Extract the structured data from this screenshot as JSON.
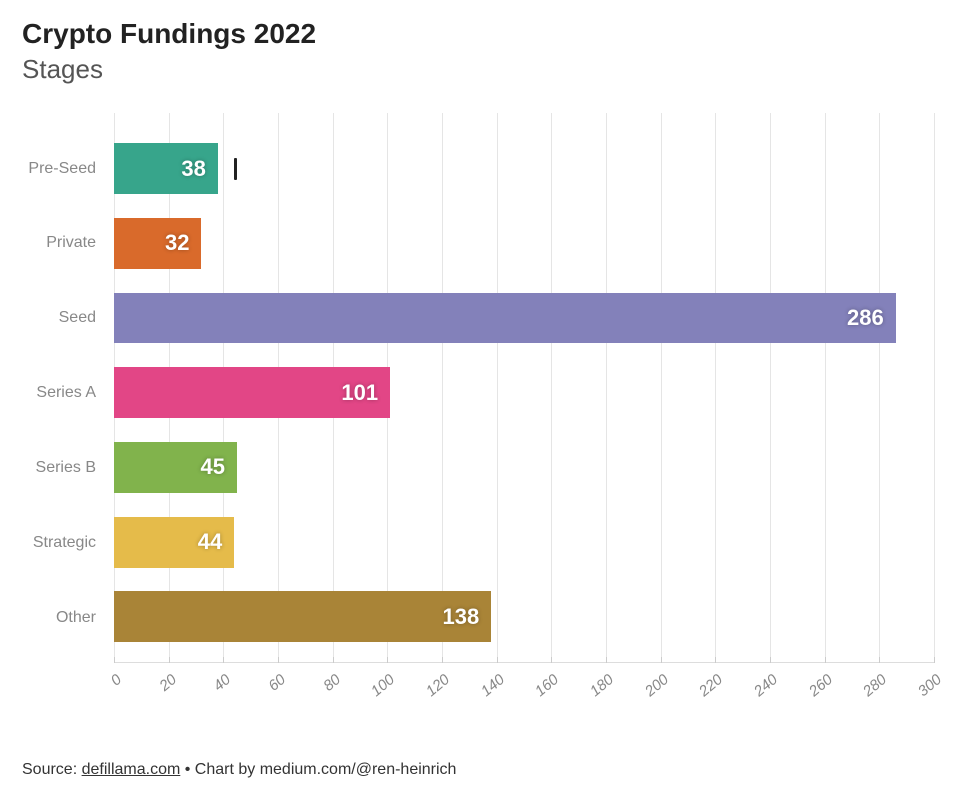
{
  "title": "Crypto Fundings 2022",
  "subtitle": "Stages",
  "source": {
    "prefix": "Source: ",
    "link_text": "defillama.com",
    "suffix": " • Chart by medium.com/@ren-heinrich"
  },
  "chart": {
    "type": "bar-horizontal",
    "xlim": [
      0,
      300
    ],
    "xtick_step": 20,
    "xtick_labels": [
      "0",
      "20",
      "40",
      "60",
      "80",
      "100",
      "120",
      "140",
      "160",
      "180",
      "200",
      "220",
      "240",
      "260",
      "280",
      "300"
    ],
    "xtick_rotate_deg": -40,
    "xtick_fontsize": 15,
    "xtick_color": "#888888",
    "ylabel_fontsize": 16,
    "ylabel_color": "#888888",
    "grid_color": "#e5e5e5",
    "axis_color": "#dddddd",
    "background_color": "#ffffff",
    "value_label_fontsize": 22,
    "value_label_color": "#ffffff",
    "value_label_weight": 700,
    "bar_height_pct": 68,
    "categories": [
      "Pre-Seed",
      "Private",
      "Seed",
      "Series A",
      "Series B",
      "Strategic",
      "Other"
    ],
    "values": [
      38,
      32,
      286,
      101,
      45,
      44,
      138
    ],
    "bar_colors": [
      "#37a58b",
      "#d96a2b",
      "#8381ba",
      "#e24686",
      "#81b34c",
      "#e5bb4a",
      "#a98437"
    ],
    "cursor_marker": {
      "x_value": 44,
      "row_index": 0,
      "color": "#222222"
    }
  },
  "typography": {
    "title_fontsize": 28,
    "title_weight": 700,
    "title_color": "#222222",
    "subtitle_fontsize": 26,
    "subtitle_weight": 400,
    "subtitle_color": "#555555",
    "source_fontsize": 16,
    "source_color": "#333333",
    "font_family": "Segoe UI, Helvetica Neue, Arial, sans-serif"
  }
}
